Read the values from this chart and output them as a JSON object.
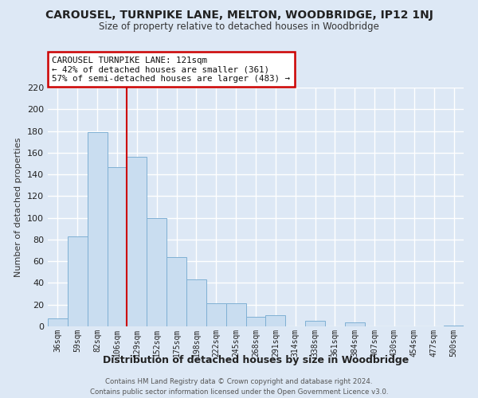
{
  "title": "CAROUSEL, TURNPIKE LANE, MELTON, WOODBRIDGE, IP12 1NJ",
  "subtitle": "Size of property relative to detached houses in Woodbridge",
  "xlabel": "Distribution of detached houses by size in Woodbridge",
  "ylabel": "Number of detached properties",
  "bar_color": "#c9ddf0",
  "bar_edge_color": "#7fb0d4",
  "bg_color": "#dde8f5",
  "plot_bg_color": "#dde8f5",
  "grid_color": "#ffffff",
  "categories": [
    "36sqm",
    "59sqm",
    "82sqm",
    "106sqm",
    "129sqm",
    "152sqm",
    "175sqm",
    "198sqm",
    "222sqm",
    "245sqm",
    "268sqm",
    "291sqm",
    "314sqm",
    "338sqm",
    "361sqm",
    "384sqm",
    "407sqm",
    "430sqm",
    "454sqm",
    "477sqm",
    "500sqm"
  ],
  "values": [
    7,
    83,
    179,
    147,
    156,
    100,
    64,
    43,
    21,
    21,
    9,
    10,
    0,
    5,
    0,
    4,
    0,
    0,
    0,
    0,
    1
  ],
  "ylim": [
    0,
    220
  ],
  "yticks": [
    0,
    20,
    40,
    60,
    80,
    100,
    120,
    140,
    160,
    180,
    200,
    220
  ],
  "vline_color": "#cc0000",
  "vline_bar_index": 4,
  "annotation_title": "CAROUSEL TURNPIKE LANE: 121sqm",
  "annotation_line1": "← 42% of detached houses are smaller (361)",
  "annotation_line2": "57% of semi-detached houses are larger (483) →",
  "annotation_box_edge": "#cc0000",
  "footer_line1": "Contains HM Land Registry data © Crown copyright and database right 2024.",
  "footer_line2": "Contains public sector information licensed under the Open Government Licence v3.0."
}
